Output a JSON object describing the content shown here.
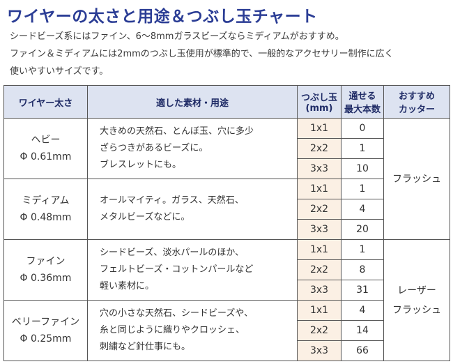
{
  "title": "ワイヤーの太さと用途＆つぶし玉チャート",
  "intro": [
    "シードビーズ系にはファイン、6～8mmガラスビーズならミディアムがおすすめ。",
    "ファイン＆ミディアムには2mmのつぶし玉使用が標準的で、一般的なアクセサリー制作に広く",
    "使いやすいサイズです。"
  ],
  "headers": {
    "wire": "ワイヤー太さ",
    "use": "適した素材・用途",
    "bead_line1": "つぶし玉",
    "bead_line2": "(mm)",
    "count_line1": "通せる",
    "count_line2": "最大本数",
    "cutter_line1": "おすすめ",
    "cutter_line2": "カッター"
  },
  "rows": [
    {
      "name": "ヘビー",
      "dia": "Φ 0.61mm",
      "desc": [
        "大きめの天然石、とんぼ玉、穴に多少",
        "ざらつきがあるビーズに。",
        "ブレスレットにも。"
      ],
      "sizes": [
        {
          "size": "1x1",
          "count": "0"
        },
        {
          "size": "2x2",
          "count": "1"
        },
        {
          "size": "3x3",
          "count": "10"
        }
      ]
    },
    {
      "name": "ミディアム",
      "dia": "Φ 0.48mm",
      "desc": [
        "オールマイティ。ガラス、天然石、",
        "メタルビーズなどに。"
      ],
      "sizes": [
        {
          "size": "1x1",
          "count": "1"
        },
        {
          "size": "2x2",
          "count": "4"
        },
        {
          "size": "3x3",
          "count": "20"
        }
      ]
    },
    {
      "name": "ファイン",
      "dia": "Φ 0.36mm",
      "desc": [
        "シードビーズ、淡水パールのほか、",
        "フェルトビーズ・コットンパールなど",
        "軽い素材に。"
      ],
      "sizes": [
        {
          "size": "1x1",
          "count": "1"
        },
        {
          "size": "2x2",
          "count": "8"
        },
        {
          "size": "3x3",
          "count": "31"
        }
      ]
    },
    {
      "name": "ベリーファイン",
      "dia": "Φ 0.25mm",
      "desc": [
        "穴の小さな天然石、シードビーズや、",
        "糸と同じように織りやクロッシェ、",
        "刺繍など針仕事にも。"
      ],
      "sizes": [
        {
          "size": "1x1",
          "count": "4"
        },
        {
          "size": "2x2",
          "count": "14"
        },
        {
          "size": "3x3",
          "count": "66"
        }
      ]
    }
  ],
  "cutters": {
    "flush": "フラッシュ",
    "razor_line1": "レーザー",
    "razor_line2": "フラッシュ"
  },
  "colors": {
    "title": "#2b3d95",
    "header_bg": "#dde3f1",
    "size_bg": "#fbf0e4"
  }
}
